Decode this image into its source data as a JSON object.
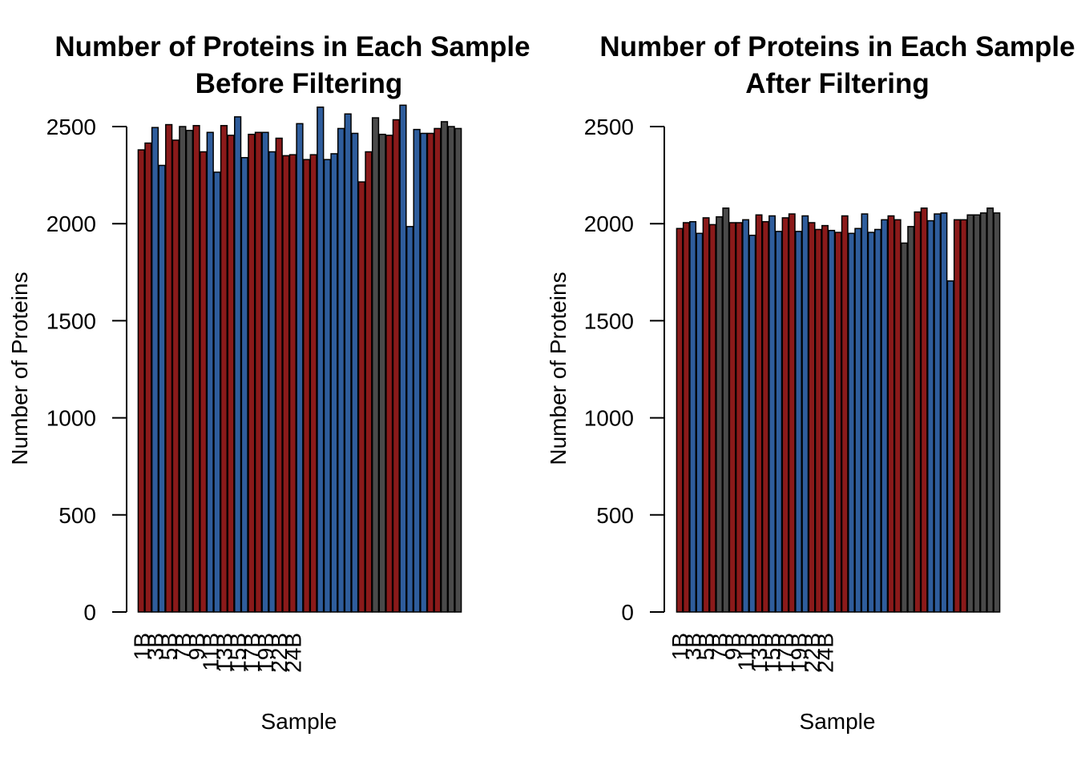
{
  "chart_data": [
    {
      "type": "bar",
      "title": [
        "Number of Proteins in Each Sample",
        "Before Filtering"
      ],
      "xlabel": "Sample",
      "ylabel": "Number of Proteins",
      "ylim": [
        0,
        2500
      ],
      "yticks": [
        0,
        500,
        1000,
        1500,
        2000,
        2500
      ],
      "x_tick_labels": [
        "1B",
        "3B",
        "5B",
        "7B",
        "9B",
        "11B",
        "13B",
        "15B",
        "17B",
        "19B",
        "22B",
        "24B"
      ],
      "values": [
        2380,
        2415,
        2495,
        2300,
        2510,
        2430,
        2500,
        2480,
        2505,
        2370,
        2470,
        2265,
        2505,
        2455,
        2550,
        2340,
        2460,
        2470,
        2470,
        2370,
        2440,
        2350,
        2355,
        2515,
        2330,
        2355,
        2600,
        2330,
        2360,
        2490,
        2565,
        2465,
        2215,
        2370,
        2545,
        2460,
        2455,
        2535,
        2610,
        1985,
        2485,
        2465,
        2465,
        2490,
        2525,
        2500,
        2490
      ],
      "groups": [
        "red",
        "red",
        "blue",
        "blue",
        "red",
        "red",
        "gray",
        "gray",
        "red",
        "red",
        "blue",
        "blue",
        "red",
        "red",
        "blue",
        "blue",
        "red",
        "red",
        "blue",
        "blue",
        "red",
        "red",
        "red",
        "blue",
        "red",
        "red",
        "blue",
        "blue",
        "blue",
        "blue",
        "blue",
        "blue",
        "red",
        "red",
        "gray",
        "gray",
        "red",
        "red",
        "blue",
        "blue",
        "blue",
        "blue",
        "red",
        "red",
        "gray",
        "gray",
        "gray"
      ]
    },
    {
      "type": "bar",
      "title": [
        "Number of Proteins in Each Sample",
        "After Filtering"
      ],
      "xlabel": "Sample",
      "ylabel": "Number of Proteins",
      "ylim": [
        0,
        2500
      ],
      "yticks": [
        0,
        500,
        1000,
        1500,
        2000,
        2500
      ],
      "x_tick_labels": [
        "1B",
        "3B",
        "5B",
        "7B",
        "9B",
        "11B",
        "13B",
        "15B",
        "17B",
        "19B",
        "22B",
        "24B"
      ],
      "values": [
        1975,
        2005,
        2010,
        1950,
        2030,
        1995,
        2035,
        2080,
        2005,
        2005,
        2020,
        1940,
        2045,
        2010,
        2040,
        1960,
        2030,
        2050,
        1960,
        2040,
        2005,
        1970,
        1990,
        1965,
        1955,
        2040,
        1950,
        1975,
        2050,
        1955,
        1970,
        2020,
        2040,
        2020,
        1900,
        1985,
        2060,
        2080,
        2015,
        2050,
        2055,
        1705,
        2020,
        2020,
        2045,
        2045,
        2055,
        2080,
        2055
      ],
      "groups": [
        "red",
        "red",
        "blue",
        "blue",
        "red",
        "red",
        "gray",
        "gray",
        "red",
        "red",
        "blue",
        "blue",
        "red",
        "red",
        "blue",
        "blue",
        "red",
        "red",
        "blue",
        "blue",
        "red",
        "red",
        "red",
        "blue",
        "red",
        "red",
        "blue",
        "blue",
        "blue",
        "blue",
        "blue",
        "blue",
        "red",
        "red",
        "gray",
        "gray",
        "red",
        "red",
        "blue",
        "blue",
        "blue",
        "blue",
        "red",
        "red",
        "gray",
        "gray",
        "gray",
        "gray",
        "gray"
      ]
    }
  ],
  "colors": {
    "red": "#8b1a1a",
    "blue": "#2f5d9c",
    "gray": "#4a4a4a",
    "stroke": "#000000"
  }
}
